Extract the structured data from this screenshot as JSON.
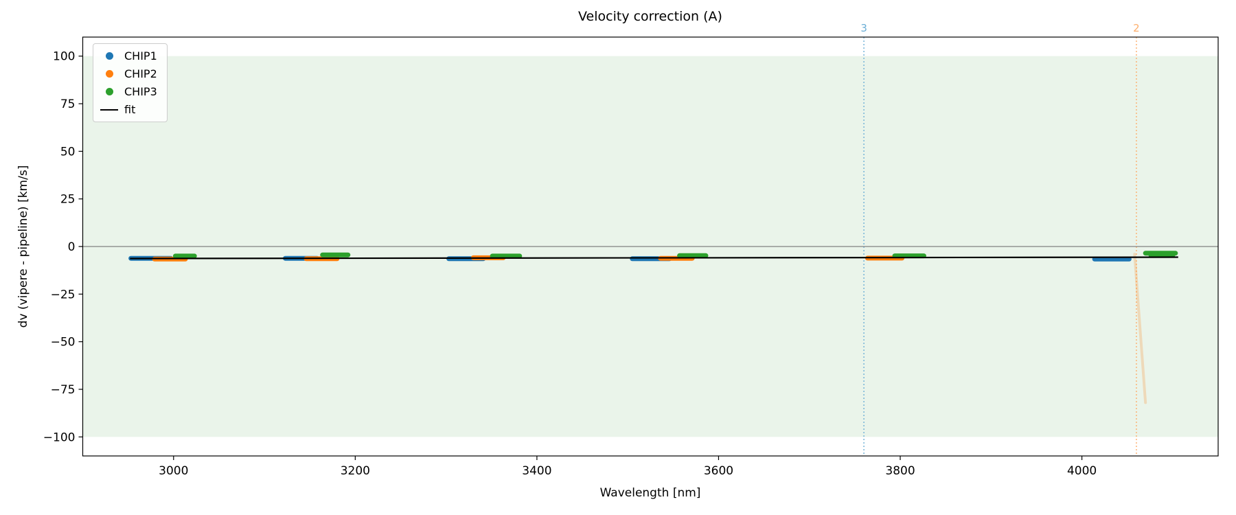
{
  "chart_data": {
    "type": "scatter",
    "title": "Velocity correction (A)",
    "xlabel": "Wavelength [nm]",
    "ylabel": "dv (vipere - pipeline) [km/s]",
    "xlim": [
      2900,
      4150
    ],
    "ylim": [
      -110,
      110
    ],
    "xticks": [
      3000,
      3200,
      3400,
      3600,
      3800,
      4000
    ],
    "yticks": [
      -100,
      -75,
      -50,
      -25,
      0,
      25,
      50,
      75,
      100
    ],
    "ytick_labels": [
      "−100",
      "−75",
      "−50",
      "−25",
      "0",
      "25",
      "50",
      "75",
      "100"
    ],
    "grid": false,
    "legend_position": "upper-left",
    "legend": [
      {
        "label": "CHIP1",
        "color": "#1f77b4",
        "marker": "dot"
      },
      {
        "label": "CHIP2",
        "color": "#ff7f0e",
        "marker": "dot"
      },
      {
        "label": "CHIP3",
        "color": "#2ca02c",
        "marker": "dot"
      },
      {
        "label": "fit",
        "color": "#000000",
        "marker": "line"
      }
    ],
    "background_band": {
      "ymin": -100,
      "ymax": 100,
      "color": "#eaf4ea"
    },
    "zero_line": {
      "y": 0,
      "color": "#808080"
    },
    "fit_line": {
      "x": [
        2952,
        4106
      ],
      "y": [
        -6.3,
        -5.6
      ],
      "color": "#000000"
    },
    "series_segments": [
      {
        "series": "CHIP1",
        "x1": 2953,
        "x2": 2997,
        "y": -6.2
      },
      {
        "series": "CHIP1",
        "x1": 3123,
        "x2": 3158,
        "y": -6.2
      },
      {
        "series": "CHIP1",
        "x1": 3303,
        "x2": 3341,
        "y": -6.4
      },
      {
        "series": "CHIP1",
        "x1": 3505,
        "x2": 3546,
        "y": -6.4
      },
      {
        "series": "CHIP1",
        "x1": 4014,
        "x2": 4052,
        "y": -6.6
      },
      {
        "series": "CHIP2",
        "x1": 2979,
        "x2": 3013,
        "y": -6.6
      },
      {
        "series": "CHIP2",
        "x1": 3146,
        "x2": 3180,
        "y": -6.4
      },
      {
        "series": "CHIP2",
        "x1": 3330,
        "x2": 3363,
        "y": -5.9
      },
      {
        "series": "CHIP2",
        "x1": 3536,
        "x2": 3571,
        "y": -6.2
      },
      {
        "series": "CHIP2",
        "x1": 3764,
        "x2": 3802,
        "y": -6.1
      },
      {
        "series": "CHIP3",
        "x1": 3002,
        "x2": 3023,
        "y": -5.0
      },
      {
        "series": "CHIP3",
        "x1": 3164,
        "x2": 3192,
        "y": -4.4
      },
      {
        "series": "CHIP3",
        "x1": 3351,
        "x2": 3381,
        "y": -5.0
      },
      {
        "series": "CHIP3",
        "x1": 3557,
        "x2": 3586,
        "y": -4.8
      },
      {
        "series": "CHIP3",
        "x1": 3794,
        "x2": 3826,
        "y": -4.9
      },
      {
        "series": "CHIP3",
        "x1": 4070,
        "x2": 4103,
        "y": -3.5
      },
      {
        "series": "CHIP3",
        "x1": 4076,
        "x2": 4100,
        "y": -4.6
      }
    ],
    "vertical_markers": [
      {
        "x": 3760,
        "label": "3",
        "color": "#6baed6"
      },
      {
        "x": 4060,
        "label": "2",
        "color": "#fdae6b"
      }
    ],
    "faint_segment": {
      "x": [
        4058,
        4070
      ],
      "y": [
        -4,
        -82
      ],
      "color": "#ff7f0e",
      "opacity": 0.22
    }
  }
}
